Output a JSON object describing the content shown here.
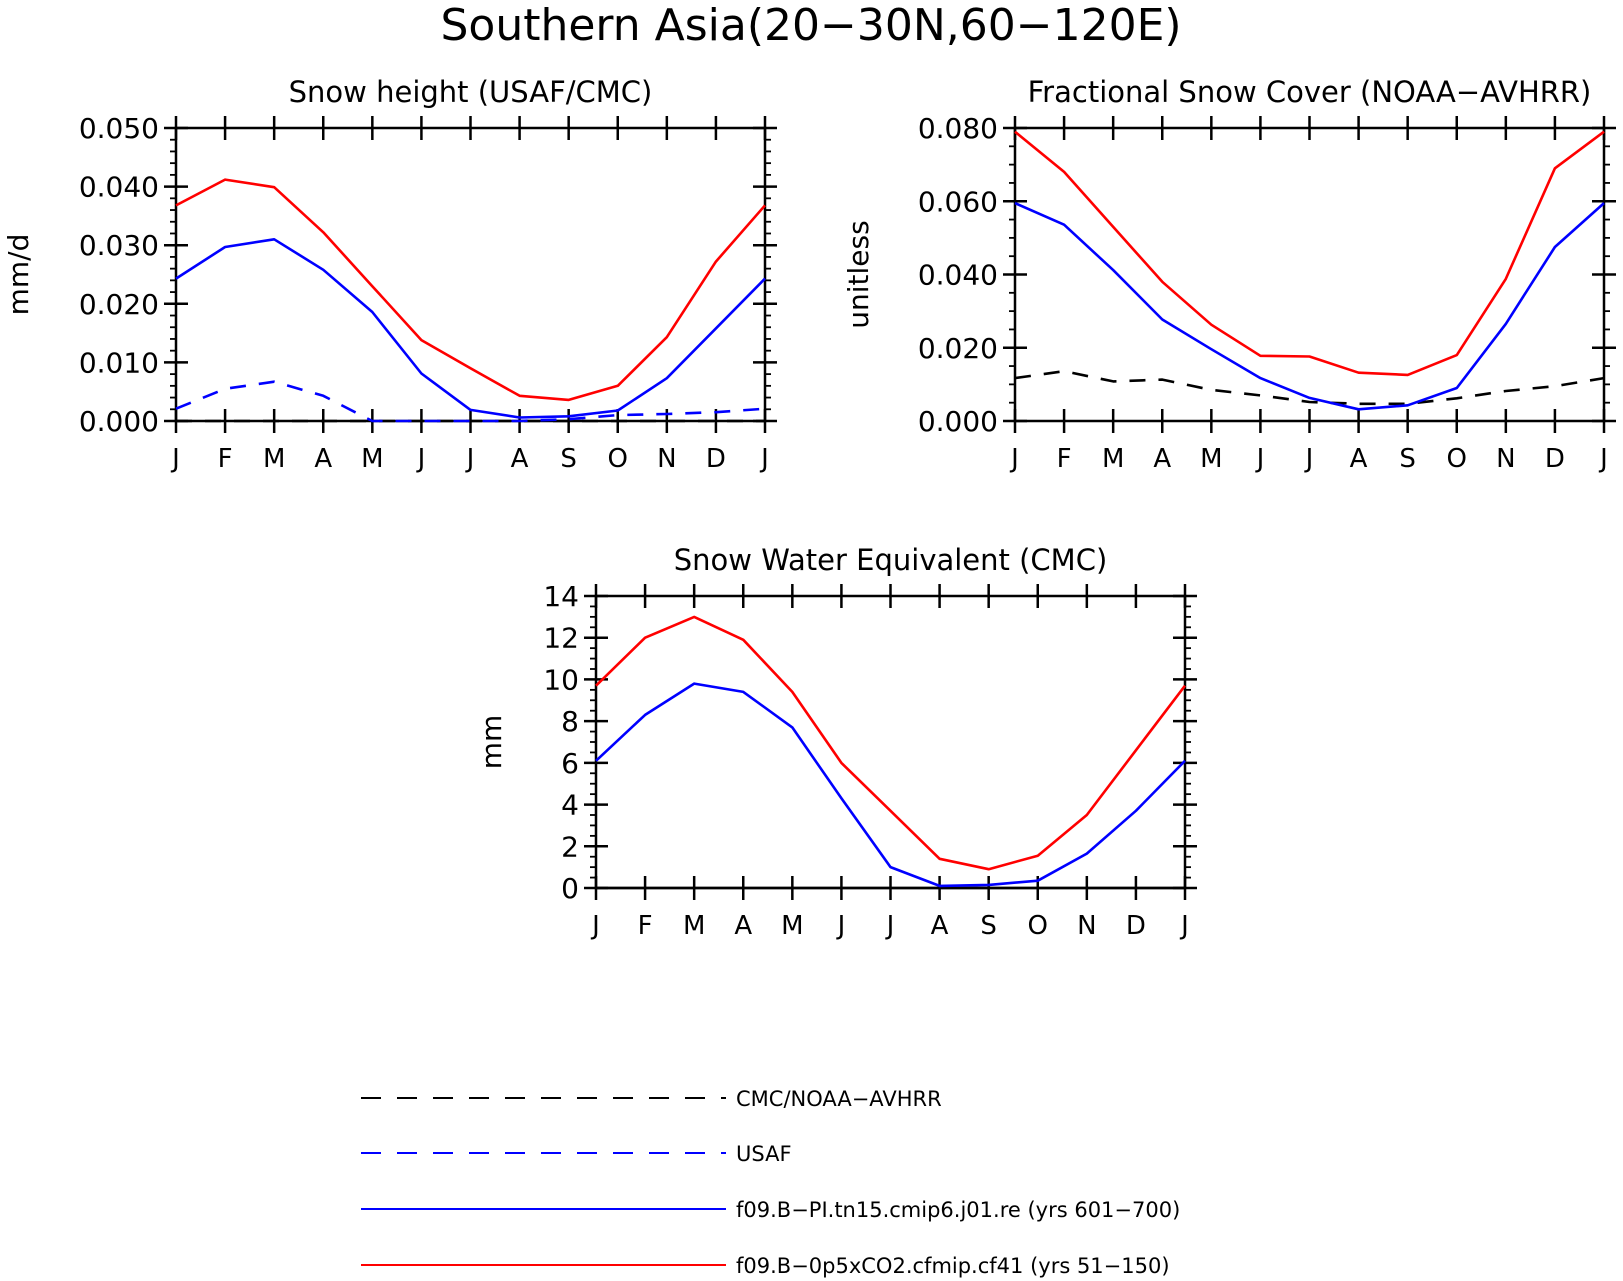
{
  "figure": {
    "title": "Southern Asia(20−30N,60−120E)"
  },
  "months": [
    "J",
    "F",
    "M",
    "A",
    "M",
    "J",
    "J",
    "A",
    "S",
    "O",
    "N",
    "D",
    "J"
  ],
  "colors": {
    "obs_black": "#000000",
    "obs_blue": "#0000ff",
    "model_blue": "#0000ff",
    "model_red": "#ff0000"
  },
  "chart_data": [
    {
      "type": "line",
      "title": "Snow height (USAF/CMC)",
      "ylabel": "mm/d",
      "ylim": [
        0,
        0.05
      ],
      "yticks": [
        "0.000",
        "0.010",
        "0.020",
        "0.030",
        "0.040",
        "0.050"
      ],
      "x": [
        "J",
        "F",
        "M",
        "A",
        "M",
        "J",
        "J",
        "A",
        "S",
        "O",
        "N",
        "D",
        "J"
      ],
      "series": [
        {
          "name": "CMC/NOAA−AVHRR",
          "color": "#000000",
          "style": "dashed",
          "values": [
            0,
            0,
            0,
            0,
            0,
            0,
            0,
            0,
            0,
            0,
            0,
            0,
            0
          ]
        },
        {
          "name": "USAF",
          "color": "#0000ff",
          "style": "dashed",
          "values": [
            0.0021,
            0.0055,
            0.0067,
            0.0043,
            0.0,
            0.0,
            0.0,
            0.0,
            0.0003,
            0.001,
            0.0012,
            0.0015,
            0.0021
          ]
        },
        {
          "name": "f09.B−PI.tn15.cmip6.j01.re (yrs 601−700)",
          "color": "#0000ff",
          "style": "solid",
          "values": [
            0.0243,
            0.0297,
            0.031,
            0.0258,
            0.0186,
            0.0081,
            0.0019,
            0.0006,
            0.0008,
            0.0018,
            0.0073,
            0.0158,
            0.0243
          ]
        },
        {
          "name": "f09.B−0p5xCO2.cfmip.cf41 (yrs 51−150)",
          "color": "#ff0000",
          "style": "solid",
          "values": [
            0.0368,
            0.0412,
            0.0399,
            0.0322,
            0.023,
            0.0138,
            0.009,
            0.0043,
            0.0036,
            0.006,
            0.0143,
            0.0272,
            0.0368
          ]
        }
      ]
    },
    {
      "type": "line",
      "title": "Fractional Snow Cover (NOAA−AVHRR)",
      "ylabel": "unitless",
      "ylim": [
        0,
        0.08
      ],
      "yticks": [
        "0.000",
        "0.020",
        "0.040",
        "0.060",
        "0.080"
      ],
      "x": [
        "J",
        "F",
        "M",
        "A",
        "M",
        "J",
        "J",
        "A",
        "S",
        "O",
        "N",
        "D",
        "J"
      ],
      "series": [
        {
          "name": "CMC/NOAA−AVHRR",
          "color": "#000000",
          "style": "dashed",
          "values": [
            0.0117,
            0.0136,
            0.0108,
            0.0113,
            0.0085,
            0.007,
            0.0052,
            0.0047,
            0.0047,
            0.0062,
            0.0082,
            0.0095,
            0.0117
          ]
        },
        {
          "name": "f09.B−PI.tn15.cmip6.j01.re (yrs 601−700)",
          "color": "#0000ff",
          "style": "solid",
          "values": [
            0.0595,
            0.0536,
            0.0412,
            0.0277,
            0.0196,
            0.0117,
            0.0063,
            0.0032,
            0.0043,
            0.009,
            0.0265,
            0.0475,
            0.0595
          ]
        },
        {
          "name": "f09.B−0p5xCO2.cfmip.cf41 (yrs 51−150)",
          "color": "#ff0000",
          "style": "solid",
          "values": [
            0.079,
            0.068,
            0.053,
            0.038,
            0.0263,
            0.0178,
            0.0176,
            0.0132,
            0.0126,
            0.018,
            0.0388,
            0.069,
            0.079
          ]
        }
      ]
    },
    {
      "type": "line",
      "title": "Snow Water Equivalent (CMC)",
      "ylabel": "mm",
      "ylim": [
        0,
        14
      ],
      "yticks": [
        "0",
        "2",
        "4",
        "6",
        "8",
        "10",
        "12",
        "14"
      ],
      "x": [
        "J",
        "F",
        "M",
        "A",
        "M",
        "J",
        "J",
        "A",
        "S",
        "O",
        "N",
        "D",
        "J"
      ],
      "series": [
        {
          "name": "CMC/NOAA−AVHRR",
          "color": "#000000",
          "style": "solid",
          "values": [
            0,
            0,
            0,
            0,
            0,
            0,
            0,
            0,
            0,
            0,
            0,
            0,
            0
          ]
        },
        {
          "name": "f09.B−PI.tn15.cmip6.j01.re (yrs 601−700)",
          "color": "#0000ff",
          "style": "solid",
          "values": [
            6.1,
            8.3,
            9.8,
            9.4,
            7.7,
            4.3,
            1.0,
            0.1,
            0.15,
            0.35,
            1.65,
            3.7,
            6.1
          ]
        },
        {
          "name": "f09.B−0p5xCO2.cfmip.cf41 (yrs 51−150)",
          "color": "#ff0000",
          "style": "solid",
          "values": [
            9.7,
            12.0,
            13.0,
            11.9,
            9.4,
            6.0,
            3.7,
            1.4,
            0.9,
            1.55,
            3.5,
            6.6,
            9.7
          ]
        }
      ]
    }
  ],
  "legend": [
    {
      "label": "CMC/NOAA−AVHRR",
      "color": "#000000",
      "style": "dashed"
    },
    {
      "label": "USAF",
      "color": "#0000ff",
      "style": "dashed"
    },
    {
      "label": "f09.B−PI.tn15.cmip6.j01.re (yrs 601−700)",
      "color": "#0000ff",
      "style": "solid"
    },
    {
      "label": "f09.B−0p5xCO2.cfmip.cf41 (yrs 51−150)",
      "color": "#ff0000",
      "style": "solid"
    }
  ]
}
